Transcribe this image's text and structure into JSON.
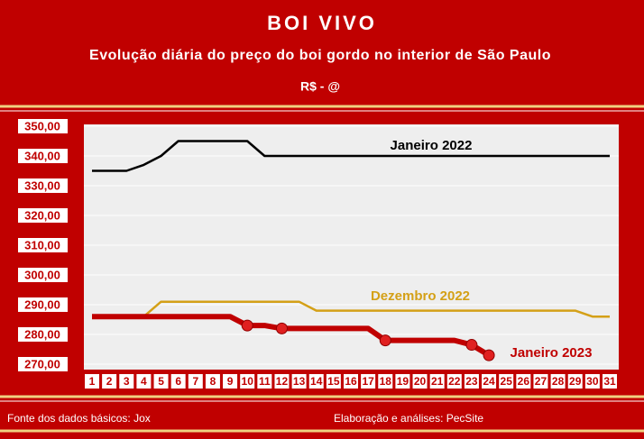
{
  "chart_data": {
    "type": "line",
    "title": "BOI VIVO",
    "subtitle": "Evolução diária do preço do boi gordo no interior de São Paulo",
    "unit_label": "R$  - @",
    "categories": [
      "1",
      "2",
      "3",
      "4",
      "5",
      "6",
      "7",
      "8",
      "9",
      "10",
      "11",
      "12",
      "13",
      "14",
      "15",
      "16",
      "17",
      "18",
      "19",
      "20",
      "21",
      "22",
      "23",
      "24",
      "25",
      "26",
      "27",
      "28",
      "29",
      "30",
      "31"
    ],
    "series": [
      {
        "name": "Janeiro 2022",
        "color": "#000000",
        "values": [
          335,
          335,
          335,
          337,
          340,
          345,
          345,
          345,
          345,
          345,
          340,
          340,
          340,
          340,
          340,
          340,
          340,
          340,
          340,
          340,
          340,
          340,
          340,
          340,
          340,
          340,
          340,
          340,
          340,
          340,
          340
        ]
      },
      {
        "name": "Dezembro 2022",
        "color": "#d4a017",
        "values": [
          286,
          286,
          286,
          286,
          291,
          291,
          291,
          291,
          291,
          291,
          291,
          291,
          291,
          288,
          288,
          288,
          288,
          288,
          288,
          288,
          288,
          288,
          288,
          288,
          288,
          288,
          288,
          288,
          288,
          286,
          286
        ]
      },
      {
        "name": "Janeiro 2023",
        "color": "#c00000",
        "values": [
          286,
          286,
          286,
          286,
          286,
          286,
          286,
          286,
          286,
          283,
          283,
          282,
          282,
          282,
          282,
          282,
          282,
          278,
          278,
          278,
          278,
          278,
          276.5,
          273,
          null,
          null,
          null,
          null,
          null,
          null,
          null
        ]
      }
    ],
    "ylim": [
      270,
      350
    ],
    "yticks": [
      {
        "value": 270,
        "label": "270,00"
      },
      {
        "value": 280,
        "label": "280,00"
      },
      {
        "value": 290,
        "label": "290,00"
      },
      {
        "value": 300,
        "label": "300,00"
      },
      {
        "value": 310,
        "label": "310,00"
      },
      {
        "value": 320,
        "label": "320,00"
      },
      {
        "value": 330,
        "label": "330,00"
      },
      {
        "value": 340,
        "label": "340,00"
      },
      {
        "value": 350,
        "label": "350,00"
      }
    ],
    "grid": true,
    "source": "Fonte dos dados básicos: Jox",
    "credit": "Elaboração e análises: PecSite"
  }
}
